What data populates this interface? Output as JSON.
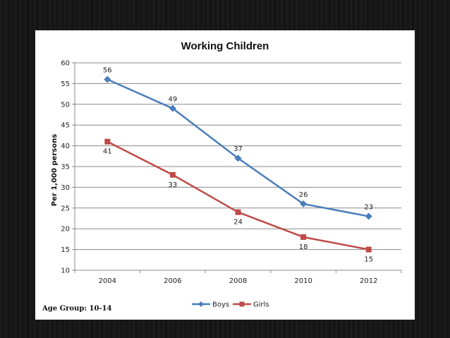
{
  "note": "Age Group: 10-14",
  "chart_data": {
    "type": "line",
    "title": "Working Children",
    "xlabel": "",
    "ylabel": "Per 1,000 persons",
    "categories": [
      "2004",
      "2006",
      "2008",
      "2010",
      "2012"
    ],
    "ylim": [
      10,
      60
    ],
    "yticks": [
      10,
      15,
      20,
      25,
      30,
      35,
      40,
      45,
      50,
      55,
      60
    ],
    "grid": true,
    "legend_placement": "bottom",
    "series": [
      {
        "name": "Boys",
        "values": [
          56,
          49,
          37,
          26,
          23
        ],
        "color": "#4a7ebb",
        "marker": "diamond"
      },
      {
        "name": "Girls",
        "values": [
          41,
          33,
          24,
          18,
          15
        ],
        "color": "#be4b48",
        "marker": "square"
      }
    ]
  }
}
